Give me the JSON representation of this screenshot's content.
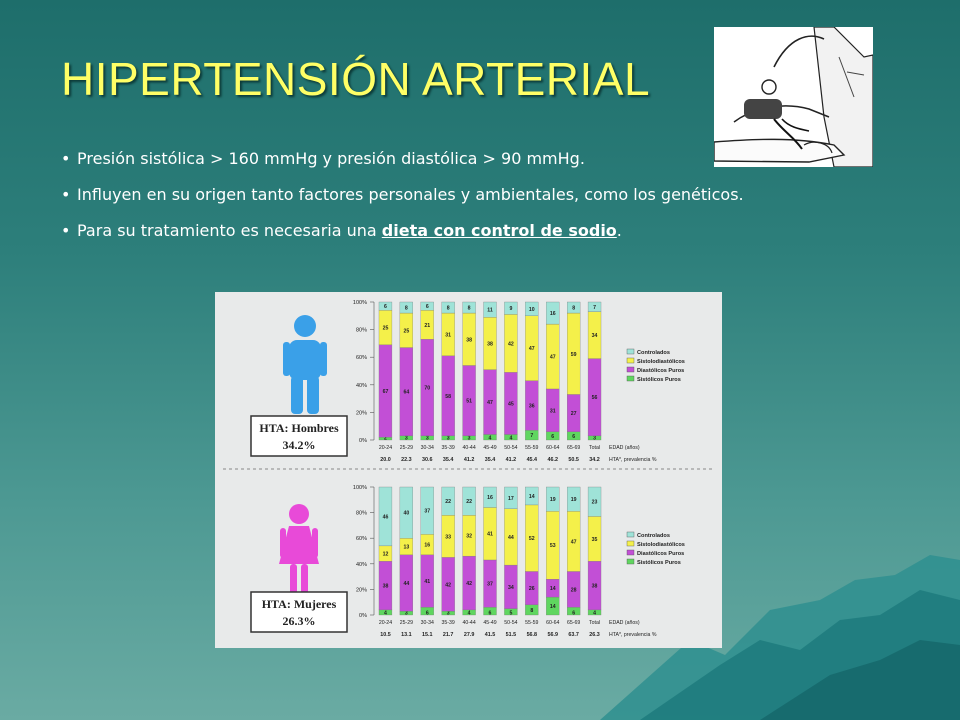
{
  "slide": {
    "title": "HIPERTENSIÓN ARTERIAL",
    "bullets": [
      {
        "text": "Presión sistólica > 160 mmHg y presión diastólica > 90 mmHg."
      },
      {
        "text": "Influyen en su origen tanto factores personales y ambientales, como los genéticos."
      },
      {
        "text_before": "Para su tratamiento es necesaria una ",
        "link_text": "dieta con control de sodio",
        "text_after": "."
      }
    ],
    "photo_icon": "doctor-blood-pressure-icon",
    "figure_icons": [
      "male-figure-icon",
      "female-figure-icon"
    ],
    "colors": {
      "title": "#ffff66",
      "controlados": "#9fe3d8",
      "sistolodiastolicos": "#f4f04a",
      "diastolicos_puros": "#c24fd6",
      "sistolicos_puros": "#5fd65f",
      "male_icon": "#3aa0e8",
      "female_icon": "#e84ad8"
    }
  },
  "chart_data": [
    {
      "type": "bar",
      "stacked": true,
      "box_label": [
        "HTA: Hombres",
        "34.2%"
      ],
      "categories": [
        "20-24",
        "25-29",
        "30-34",
        "35-39",
        "40-44",
        "45-49",
        "50-54",
        "55-59",
        "60-64",
        "65-69",
        "Total"
      ],
      "x_axis_label": "EDAD (años)",
      "bottom_row": [
        "20.0",
        "22.3",
        "30.6",
        "35.4",
        "41.2",
        "35.4",
        "41.2",
        "45.4",
        "46.2",
        "50.5",
        "34.2"
      ],
      "bottom_row_label": "HTA*, prevalencia %",
      "y_ticks": [
        "100%",
        "80%",
        "60%",
        "40%",
        "20%",
        "0%"
      ],
      "ylim": [
        0,
        100
      ],
      "series": [
        {
          "name": "Sistólicos Puros",
          "color": "#5fd65f",
          "values": [
            2,
            3,
            3,
            3,
            3,
            4,
            4,
            7,
            6,
            6,
            3
          ]
        },
        {
          "name": "Diastólicos Puros",
          "color": "#c24fd6",
          "values": [
            67,
            64,
            70,
            58,
            51,
            47,
            45,
            36,
            31,
            27,
            56
          ]
        },
        {
          "name": "Sistolodiastólicos",
          "color": "#f4f04a",
          "values": [
            25,
            25,
            21,
            31,
            38,
            38,
            42,
            47,
            47,
            59,
            34
          ]
        },
        {
          "name": "Controlados",
          "color": "#9fe3d8",
          "values": [
            6,
            8,
            6,
            8,
            8,
            11,
            9,
            10,
            16,
            8,
            7
          ]
        }
      ],
      "value_labels": [
        [
          "2",
          "67",
          "25",
          "6"
        ],
        [
          "3",
          "64",
          "25",
          "8"
        ],
        [
          "3",
          "70",
          "21",
          "6"
        ],
        [
          "3",
          "58",
          "31",
          "8"
        ],
        [
          "3",
          "51",
          "38",
          "8"
        ],
        [
          "4",
          "47",
          "38",
          "11"
        ],
        [
          "4",
          "45",
          "42",
          "9"
        ],
        [
          "7",
          "36",
          "47",
          "10"
        ],
        [
          "6",
          "31",
          "47",
          "16"
        ],
        [
          "6",
          "27",
          "59",
          "8"
        ],
        [
          "3",
          "56",
          "34",
          "7"
        ]
      ],
      "legend": [
        "Controlados",
        "Sistolodiastólicos",
        "Diastólicos Puros",
        "Sistólicos Puros"
      ],
      "legend_position": "right"
    },
    {
      "type": "bar",
      "stacked": true,
      "box_label": [
        "HTA: Mujeres",
        "26.3%"
      ],
      "categories": [
        "20-24",
        "25-29",
        "30-34",
        "35-39",
        "40-44",
        "45-49",
        "50-54",
        "55-59",
        "60-64",
        "65-69",
        "Total"
      ],
      "x_axis_label": "EDAD (años)",
      "bottom_row": [
        "10.5",
        "13.1",
        "15.1",
        "21.7",
        "27.9",
        "41.5",
        "51.5",
        "56.8",
        "56.9",
        "63.7",
        "26.3"
      ],
      "bottom_row_label": "HTA*, prevalencia %",
      "y_ticks": [
        "100%",
        "80%",
        "60%",
        "40%",
        "20%",
        "0%"
      ],
      "ylim": [
        0,
        100
      ],
      "series": [
        {
          "name": "Sistólicos Puros",
          "color": "#5fd65f",
          "values": [
            4,
            3,
            6,
            3,
            4,
            6,
            5,
            8,
            14,
            6,
            4
          ]
        },
        {
          "name": "Diastólicos Puros",
          "color": "#c24fd6",
          "values": [
            38,
            44,
            41,
            42,
            42,
            37,
            34,
            26,
            14,
            28,
            38
          ]
        },
        {
          "name": "Sistolodiastólicos",
          "color": "#f4f04a",
          "values": [
            12,
            13,
            16,
            33,
            32,
            41,
            44,
            52,
            53,
            47,
            35
          ]
        },
        {
          "name": "Controlados",
          "color": "#9fe3d8",
          "values": [
            46,
            40,
            37,
            22,
            22,
            16,
            17,
            14,
            19,
            19,
            23
          ]
        }
      ],
      "value_labels": [
        [
          "4",
          "38",
          "12",
          "46"
        ],
        [
          "3",
          "44",
          "13",
          "40"
        ],
        [
          "6",
          "41",
          "16",
          "37"
        ],
        [
          "3",
          "42",
          "33",
          "22"
        ],
        [
          "4",
          "42",
          "32",
          "22"
        ],
        [
          "6",
          "37",
          "41",
          "16"
        ],
        [
          "5",
          "34",
          "44",
          "17"
        ],
        [
          "8",
          "26",
          "52",
          "14"
        ],
        [
          "14",
          "14",
          "53",
          "19"
        ],
        [
          "6",
          "28",
          "47",
          "19"
        ],
        [
          "4",
          "38",
          "35",
          "23"
        ]
      ],
      "legend": [
        "Controlados",
        "Sistolodiastólicos",
        "Diastólicos Puros",
        "Sistólicos Puros"
      ],
      "legend_position": "right"
    }
  ]
}
